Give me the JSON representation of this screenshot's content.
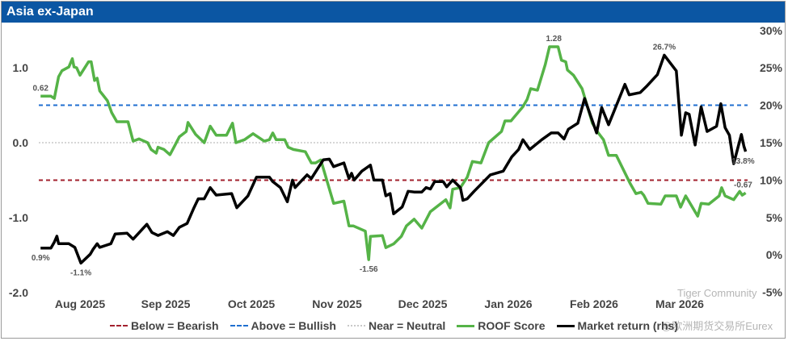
{
  "title": "Asia ex-Japan",
  "watermark": {
    "line1": "Tiger Community",
    "line2": "@欧洲期货交易所Eurex"
  },
  "colors": {
    "header": "#0b56a3",
    "roof": "#55b347",
    "market": "#000000",
    "bullish": "#1f6fd0",
    "bearish": "#a3202e",
    "neutral": "#c8c8c8"
  },
  "chart_data": {
    "type": "line",
    "title": "Asia ex-Japan",
    "x_unit": "months since Aug 2025",
    "x_ticks": [
      {
        "x": 0,
        "label": "Aug 2025"
      },
      {
        "x": 1,
        "label": "Sep 2025"
      },
      {
        "x": 2,
        "label": "Oct 2025"
      },
      {
        "x": 3,
        "label": "Nov 2025"
      },
      {
        "x": 4,
        "label": "Dec 2025"
      },
      {
        "x": 5,
        "label": "Jan 2026"
      },
      {
        "x": 6,
        "label": "Feb 2026"
      },
      {
        "x": 7,
        "label": "Mar 2026"
      }
    ],
    "y_left": {
      "range": [
        -2.0,
        1.0
      ],
      "ticks": [
        {
          "v": 1.0,
          "label": "1.0"
        },
        {
          "v": 0.0,
          "label": "0.0"
        },
        {
          "v": -1.0,
          "label": "-1.0"
        },
        {
          "v": -2.0,
          "label": "-2.0"
        }
      ]
    },
    "y_right": {
      "range": [
        -5,
        30
      ],
      "ticks": [
        {
          "v": 30,
          "label": "30%"
        },
        {
          "v": 25,
          "label": "25%"
        },
        {
          "v": 20,
          "label": "20%"
        },
        {
          "v": 15,
          "label": "15%"
        },
        {
          "v": 10,
          "label": "10%"
        },
        {
          "v": 5,
          "label": "5%"
        },
        {
          "v": 0,
          "label": "0%"
        },
        {
          "v": -5,
          "label": "-5%"
        }
      ]
    },
    "thresholds": [
      {
        "name": "Below = Bearish",
        "value": -0.5,
        "style": "dashed",
        "color": "#a3202e"
      },
      {
        "name": "Above = Bullish",
        "value": 0.5,
        "style": "dashed",
        "color": "#1f6fd0"
      },
      {
        "name": "Near = Neutral",
        "value": 0.0,
        "style": "dotted",
        "color": "#c8c8c8"
      }
    ],
    "series": [
      {
        "name": "ROOF Score",
        "axis": "left",
        "color": "#55b347",
        "points": [
          [
            -0.46,
            0.62
          ],
          [
            -0.34,
            0.62
          ],
          [
            -0.3,
            0.59
          ],
          [
            -0.25,
            0.88
          ],
          [
            -0.21,
            0.96
          ],
          [
            -0.13,
            1.01
          ],
          [
            -0.09,
            1.12
          ],
          [
            -0.07,
            1.01
          ],
          [
            -0.04,
            1.0
          ],
          [
            0.0,
            0.9
          ],
          [
            0.1,
            1.08
          ],
          [
            0.13,
            1.08
          ],
          [
            0.17,
            0.83
          ],
          [
            0.2,
            0.86
          ],
          [
            0.23,
            0.69
          ],
          [
            0.32,
            0.56
          ],
          [
            0.37,
            0.4
          ],
          [
            0.43,
            0.28
          ],
          [
            0.56,
            0.28
          ],
          [
            0.62,
            0.02
          ],
          [
            0.69,
            0.05
          ],
          [
            0.79,
            0.0
          ],
          [
            0.83,
            -0.09
          ],
          [
            0.89,
            -0.14
          ],
          [
            0.91,
            -0.06
          ],
          [
            0.98,
            -0.09
          ],
          [
            1.05,
            -0.16
          ],
          [
            1.11,
            -0.03
          ],
          [
            1.16,
            0.08
          ],
          [
            1.24,
            0.15
          ],
          [
            1.26,
            0.27
          ],
          [
            1.35,
            0.11
          ],
          [
            1.45,
            0.0
          ],
          [
            1.52,
            0.22
          ],
          [
            1.59,
            0.1
          ],
          [
            1.71,
            0.1
          ],
          [
            1.78,
            0.26
          ],
          [
            1.82,
            0.0
          ],
          [
            1.92,
            0.04
          ],
          [
            2.02,
            0.12
          ],
          [
            2.15,
            0.02
          ],
          [
            2.21,
            0.04
          ],
          [
            2.25,
            0.13
          ],
          [
            2.29,
            0.04
          ],
          [
            2.39,
            0.04
          ],
          [
            2.43,
            -0.06
          ],
          [
            2.49,
            -0.09
          ],
          [
            2.63,
            -0.12
          ],
          [
            2.7,
            -0.27
          ],
          [
            2.75,
            -0.27
          ],
          [
            2.81,
            -0.23
          ],
          [
            2.96,
            -0.81
          ],
          [
            3.08,
            -0.78
          ],
          [
            3.14,
            -1.11
          ],
          [
            3.19,
            -1.11
          ],
          [
            3.33,
            -1.18
          ],
          [
            3.37,
            -1.56
          ],
          [
            3.39,
            -1.25
          ],
          [
            3.53,
            -1.24
          ],
          [
            3.57,
            -1.4
          ],
          [
            3.66,
            -1.35
          ],
          [
            3.75,
            -1.25
          ],
          [
            3.81,
            -1.11
          ],
          [
            3.9,
            -1.02
          ],
          [
            3.99,
            -1.14
          ],
          [
            4.09,
            -0.92
          ],
          [
            4.27,
            -0.76
          ],
          [
            4.32,
            -0.87
          ],
          [
            4.35,
            -0.62
          ],
          [
            4.44,
            -0.6
          ],
          [
            4.52,
            -0.46
          ],
          [
            4.58,
            -0.25
          ],
          [
            4.68,
            -0.27
          ],
          [
            4.77,
            0.0
          ],
          [
            4.92,
            0.15
          ],
          [
            4.96,
            0.29
          ],
          [
            5.03,
            0.29
          ],
          [
            5.17,
            0.48
          ],
          [
            5.22,
            0.58
          ],
          [
            5.26,
            0.72
          ],
          [
            5.34,
            0.7
          ],
          [
            5.43,
            1.04
          ],
          [
            5.48,
            1.28
          ],
          [
            5.58,
            1.28
          ],
          [
            5.62,
            1.1
          ],
          [
            5.67,
            1.08
          ],
          [
            5.69,
            0.97
          ],
          [
            5.76,
            0.9
          ],
          [
            5.86,
            0.72
          ],
          [
            5.91,
            0.53
          ],
          [
            5.98,
            0.26
          ],
          [
            6.05,
            0.13
          ],
          [
            6.11,
            0.04
          ],
          [
            6.17,
            -0.17
          ],
          [
            6.26,
            -0.17
          ],
          [
            6.42,
            -0.54
          ],
          [
            6.49,
            -0.68
          ],
          [
            6.55,
            -0.66
          ],
          [
            6.58,
            -0.7
          ],
          [
            6.63,
            -0.81
          ],
          [
            6.78,
            -0.82
          ],
          [
            6.83,
            -0.71
          ],
          [
            6.96,
            -0.71
          ],
          [
            7.01,
            -0.86
          ],
          [
            7.07,
            -0.71
          ],
          [
            7.21,
            -0.98
          ],
          [
            7.25,
            -0.81
          ],
          [
            7.34,
            -0.82
          ],
          [
            7.46,
            -0.71
          ],
          [
            7.49,
            -0.6
          ],
          [
            7.53,
            -0.71
          ],
          [
            7.63,
            -0.76
          ],
          [
            7.7,
            -0.65
          ],
          [
            7.73,
            -0.7
          ],
          [
            7.77,
            -0.67
          ]
        ],
        "annotations": [
          {
            "x": -0.46,
            "y": 0.62,
            "label": "0.62",
            "pos": "above"
          },
          {
            "x": 5.53,
            "y": 1.28,
            "label": "1.28",
            "pos": "above"
          },
          {
            "x": 3.37,
            "y": -1.56,
            "label": "-1.56",
            "pos": "below"
          },
          {
            "x": 7.74,
            "y": -0.67,
            "label": "-0.67",
            "pos": "above"
          }
        ]
      },
      {
        "name": "Market return (rhs)",
        "axis": "right",
        "color": "#000000",
        "points": [
          [
            -0.46,
            0.9
          ],
          [
            -0.34,
            0.9
          ],
          [
            -0.3,
            1.7
          ],
          [
            -0.27,
            2.5
          ],
          [
            -0.25,
            1.5
          ],
          [
            -0.13,
            1.5
          ],
          [
            -0.06,
            1.0
          ],
          [
            0.01,
            -1.1
          ],
          [
            0.12,
            0.1
          ],
          [
            0.15,
            0.7
          ],
          [
            0.2,
            1.5
          ],
          [
            0.23,
            1.0
          ],
          [
            0.36,
            1.5
          ],
          [
            0.41,
            2.8
          ],
          [
            0.55,
            2.9
          ],
          [
            0.62,
            2.1
          ],
          [
            0.78,
            4.1
          ],
          [
            0.84,
            3.0
          ],
          [
            0.91,
            2.6
          ],
          [
            1.02,
            3.1
          ],
          [
            1.09,
            2.6
          ],
          [
            1.16,
            3.7
          ],
          [
            1.25,
            4.2
          ],
          [
            1.33,
            6.3
          ],
          [
            1.38,
            7.5
          ],
          [
            1.45,
            7.5
          ],
          [
            1.52,
            9.0
          ],
          [
            1.59,
            8.0
          ],
          [
            1.77,
            8.2
          ],
          [
            1.83,
            6.3
          ],
          [
            1.96,
            7.9
          ],
          [
            2.06,
            10.4
          ],
          [
            2.21,
            10.4
          ],
          [
            2.25,
            9.8
          ],
          [
            2.34,
            9.0
          ],
          [
            2.42,
            7.1
          ],
          [
            2.48,
            10.0
          ],
          [
            2.51,
            9.0
          ],
          [
            2.65,
            10.7
          ],
          [
            2.7,
            10.2
          ],
          [
            2.84,
            12.7
          ],
          [
            2.91,
            12.8
          ],
          [
            2.96,
            11.8
          ],
          [
            3.08,
            12.3
          ],
          [
            3.14,
            10.2
          ],
          [
            3.17,
            10.9
          ],
          [
            3.2,
            10.0
          ],
          [
            3.29,
            11.2
          ],
          [
            3.39,
            12.0
          ],
          [
            3.43,
            10.0
          ],
          [
            3.53,
            10.0
          ],
          [
            3.57,
            7.9
          ],
          [
            3.62,
            8.2
          ],
          [
            3.66,
            5.5
          ],
          [
            3.76,
            6.4
          ],
          [
            3.83,
            8.5
          ],
          [
            3.9,
            8.4
          ],
          [
            3.99,
            8.4
          ],
          [
            4.04,
            9.0
          ],
          [
            4.09,
            8.8
          ],
          [
            4.14,
            9.8
          ],
          [
            4.24,
            9.8
          ],
          [
            4.28,
            9.1
          ],
          [
            4.35,
            10.0
          ],
          [
            4.44,
            9.0
          ],
          [
            4.47,
            7.3
          ],
          [
            4.52,
            7.5
          ],
          [
            4.6,
            8.5
          ],
          [
            4.79,
            10.7
          ],
          [
            4.94,
            11.2
          ],
          [
            5.04,
            13.1
          ],
          [
            5.12,
            14.1
          ],
          [
            5.17,
            15.4
          ],
          [
            5.25,
            14.1
          ],
          [
            5.39,
            15.4
          ],
          [
            5.5,
            16.3
          ],
          [
            5.58,
            16.3
          ],
          [
            5.65,
            15.5
          ],
          [
            5.7,
            16.8
          ],
          [
            5.81,
            17.6
          ],
          [
            5.89,
            20.9
          ],
          [
            6.03,
            16.3
          ],
          [
            6.09,
            19.7
          ],
          [
            6.17,
            17.4
          ],
          [
            6.36,
            22.8
          ],
          [
            6.41,
            21.4
          ],
          [
            6.54,
            21.7
          ],
          [
            6.61,
            22.5
          ],
          [
            6.74,
            24.1
          ],
          [
            6.82,
            26.7
          ],
          [
            6.96,
            24.6
          ],
          [
            7.02,
            16.0
          ],
          [
            7.07,
            19.0
          ],
          [
            7.11,
            18.8
          ],
          [
            7.18,
            14.7
          ],
          [
            7.25,
            19.8
          ],
          [
            7.32,
            16.5
          ],
          [
            7.43,
            17.2
          ],
          [
            7.48,
            20.2
          ],
          [
            7.53,
            17.0
          ],
          [
            7.58,
            16.0
          ],
          [
            7.63,
            12.2
          ],
          [
            7.72,
            16.1
          ],
          [
            7.75,
            14.5
          ],
          [
            7.77,
            13.8
          ]
        ],
        "annotations": [
          {
            "x": -0.46,
            "y": 0.9,
            "label": "0.9%",
            "pos": "below"
          },
          {
            "x": 0.01,
            "y": -1.1,
            "label": "-1.1%",
            "pos": "below"
          },
          {
            "x": 6.82,
            "y": 26.7,
            "label": "26.7%",
            "pos": "above"
          },
          {
            "x": 7.74,
            "y": 13.8,
            "label": "13.8%",
            "pos": "below"
          }
        ]
      }
    ],
    "legend": {
      "position": "bottom",
      "entries": [
        "Below = Bearish",
        "Above = Bullish",
        "Near = Neutral",
        "ROOF Score",
        "Market return (rhs)"
      ]
    },
    "grid": false
  }
}
